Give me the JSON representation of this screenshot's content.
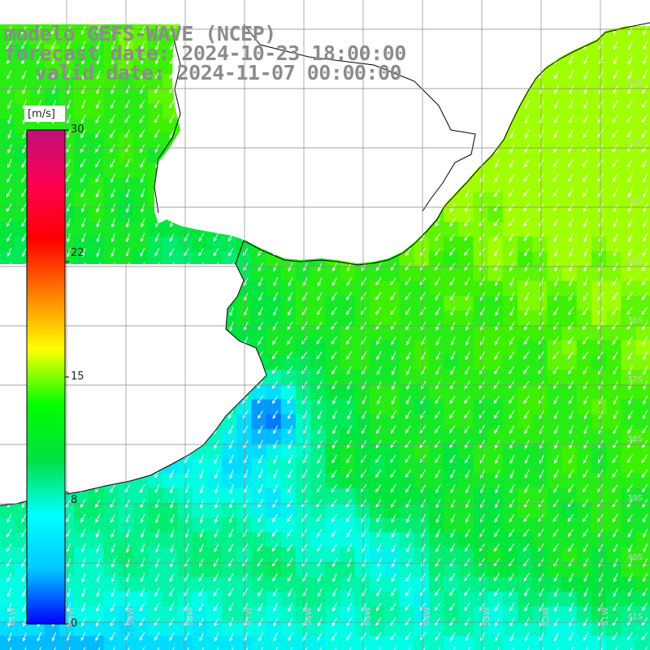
{
  "title": {
    "line1": "modelo GEFS-WAVE (NCEP)",
    "line2": "forecast date: 2024-10-23 18:00:00",
    "line3": "valid date: 2024-11-07 00:00:00"
  },
  "colorbar": {
    "unit": "[m/s]",
    "ticks": [
      "30",
      "22",
      "15",
      "8",
      "0"
    ],
    "tick_values": [
      30,
      22,
      15,
      8,
      0
    ],
    "range": [
      0,
      30
    ],
    "colors": [
      "#0000ff",
      "#00c8ff",
      "#00ffff",
      "#00e040",
      "#00ff00",
      "#ffff00",
      "#ff8000",
      "#ff0000",
      "#ff0050",
      "#c0107a"
    ]
  },
  "map_colors": {
    "land": "#ffffff",
    "coast": "#000000",
    "grid": "#888888",
    "wind_arrows": "#ffffff",
    "title_text": "#8c8c8c"
  },
  "lat_labels": [
    "32S",
    "33S",
    "34S",
    "35S",
    "36S",
    "37S",
    "38S",
    "39S",
    "40S",
    "41S"
  ],
  "lon_labels": [
    "61W",
    "60W",
    "59W",
    "58W",
    "57W",
    "56W",
    "55W",
    "54W",
    "53W",
    "52W",
    "51W"
  ]
}
